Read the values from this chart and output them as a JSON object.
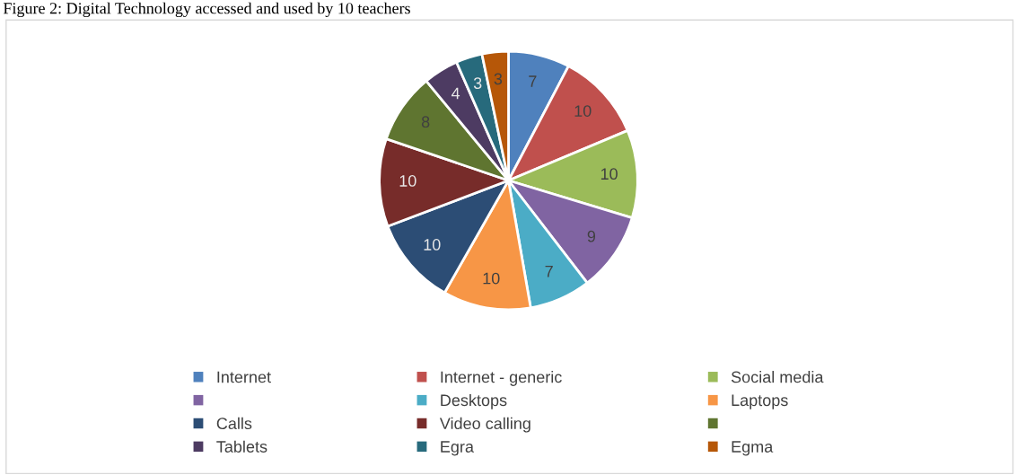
{
  "chart_data": {
    "type": "pie",
    "title": "Figure 2: Digital Technology accessed and used by 10 teachers",
    "categories": [
      "Internet",
      "Internet - generic",
      "Social media",
      null,
      "Desktops",
      "Laptops",
      "Calls",
      "Video calling",
      null,
      "Tablets",
      "Egra",
      "Egma"
    ],
    "values": [
      7,
      10,
      10,
      9,
      7,
      10,
      10,
      10,
      8,
      4,
      3,
      3
    ],
    "colors": [
      "#4f81bd",
      "#c0504d",
      "#9bbb59",
      "#8064a2",
      "#4bacc6",
      "#f79646",
      "#2c4d75",
      "#772c2a",
      "#5f7530",
      "#4d3b62",
      "#276a7c",
      "#b65708"
    ],
    "data_labels": true,
    "legend": "bottom"
  }
}
